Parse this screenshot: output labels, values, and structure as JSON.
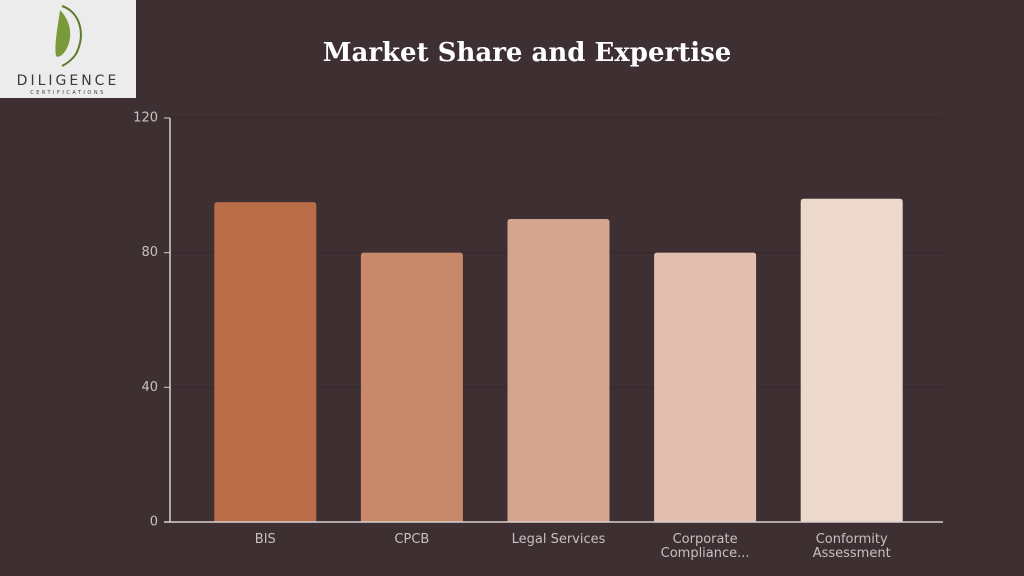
{
  "logo": {
    "name": "DILIGENCE",
    "tagline": "CERTIFICATIONS"
  },
  "chart_data": {
    "type": "bar",
    "title": "Market Share and Expertise",
    "categories": [
      "BIS",
      "CPCB",
      "Legal Services",
      "Corporate Compliance...",
      "Conformity Assessment"
    ],
    "values": [
      95,
      80,
      90,
      80,
      96
    ],
    "colors": [
      "#b96d48",
      "#c8896b",
      "#d4a58c",
      "#e2bfae",
      "#ecd9cc"
    ],
    "ylim": [
      0,
      120
    ],
    "yticks": [
      0,
      40,
      80,
      120
    ],
    "grid": true
  }
}
